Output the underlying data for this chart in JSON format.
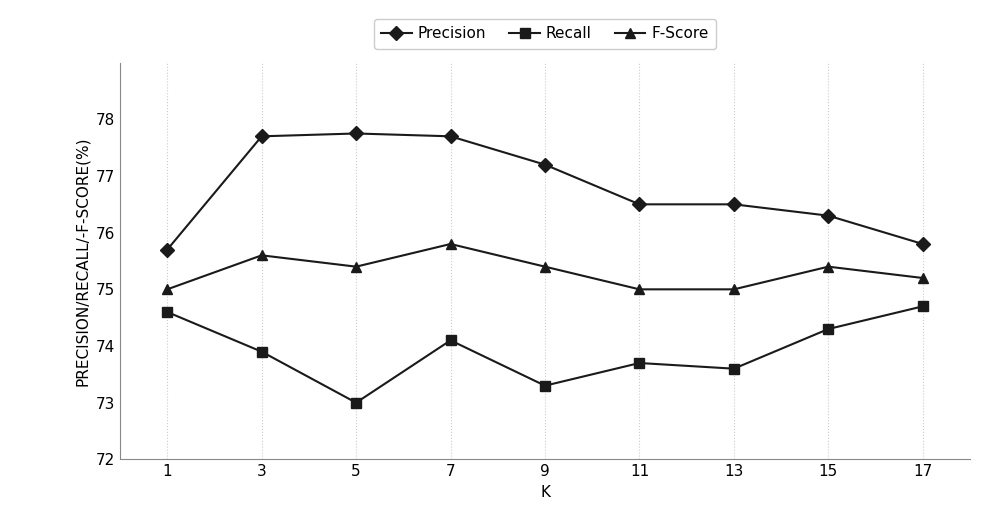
{
  "k_values": [
    1,
    3,
    5,
    7,
    9,
    11,
    13,
    15,
    17
  ],
  "precision": [
    75.7,
    77.7,
    77.75,
    77.7,
    77.2,
    76.5,
    76.5,
    76.3,
    75.8
  ],
  "recall": [
    74.6,
    73.9,
    73.0,
    74.1,
    73.3,
    73.7,
    73.6,
    74.3,
    74.7
  ],
  "fscore": [
    75.0,
    75.6,
    75.4,
    75.8,
    75.4,
    75.0,
    75.0,
    75.4,
    75.2
  ],
  "xlabel": "K",
  "ylabel": "PRECISION/RECALL/-F-SCORE(%)",
  "ylim": [
    72,
    79
  ],
  "xlim": [
    -0.2,
    8.2
  ],
  "yticks": [
    72,
    73,
    74,
    75,
    76,
    77,
    78
  ],
  "legend_labels": [
    "Precision",
    "Recall",
    "F-Score"
  ],
  "line_color": "#1a1a1a",
  "marker_precision": "D",
  "marker_recall": "s",
  "marker_fscore": "^",
  "grid_color": "#cccccc",
  "background_color": "#ffffff",
  "label_fontsize": 11,
  "tick_fontsize": 11,
  "legend_fontsize": 11
}
